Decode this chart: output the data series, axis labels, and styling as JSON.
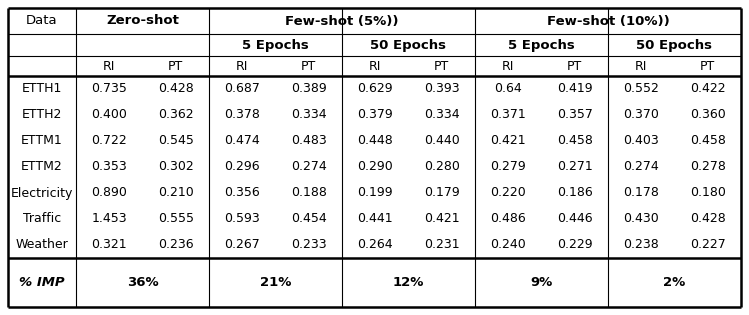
{
  "header_row1": [
    "Data",
    "Zero-shot",
    "Few-shot (5%))",
    "Few-shot (10%))"
  ],
  "header_row2": [
    "5 Epochs",
    "50 Epochs",
    "5 Epochs",
    "50 Epochs"
  ],
  "datasets": [
    "ETTH1",
    "ETTH2",
    "ETTM1",
    "ETTM2",
    "Electricity",
    "Traffic",
    "Weather"
  ],
  "data": [
    [
      "0.735",
      "0.428",
      "0.687",
      "0.389",
      "0.629",
      "0.393",
      "0.64",
      "0.419",
      "0.552",
      "0.422"
    ],
    [
      "0.400",
      "0.362",
      "0.378",
      "0.334",
      "0.379",
      "0.334",
      "0.371",
      "0.357",
      "0.370",
      "0.360"
    ],
    [
      "0.722",
      "0.545",
      "0.474",
      "0.483",
      "0.448",
      "0.440",
      "0.421",
      "0.458",
      "0.403",
      "0.458"
    ],
    [
      "0.353",
      "0.302",
      "0.296",
      "0.274",
      "0.290",
      "0.280",
      "0.279",
      "0.271",
      "0.274",
      "0.278"
    ],
    [
      "0.890",
      "0.210",
      "0.356",
      "0.188",
      "0.199",
      "0.179",
      "0.220",
      "0.186",
      "0.178",
      "0.180"
    ],
    [
      "1.453",
      "0.555",
      "0.593",
      "0.454",
      "0.441",
      "0.421",
      "0.486",
      "0.446",
      "0.430",
      "0.428"
    ],
    [
      "0.321",
      "0.236",
      "0.267",
      "0.233",
      "0.264",
      "0.231",
      "0.240",
      "0.229",
      "0.238",
      "0.227"
    ]
  ],
  "imp_row": [
    "% IMP",
    "36%",
    "21%",
    "12%",
    "9%",
    "2%"
  ],
  "bg_color": "#ffffff"
}
